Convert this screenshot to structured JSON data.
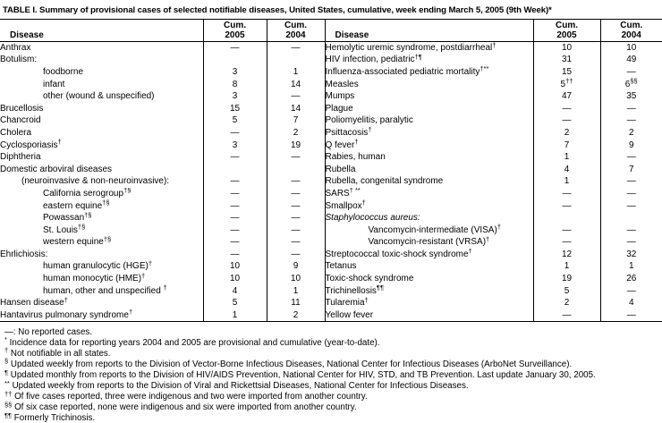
{
  "title": "TABLE I. Summary of provisional cases of selected notifiable diseases, United States, cumulative, week ending March 5, 2005 (9th Week)*",
  "header": {
    "disease": "Disease",
    "cum": "Cum.",
    "year2005": "2005",
    "year2004": "2004"
  },
  "rows_left": [
    {
      "name": "Anthrax",
      "sup": "",
      "indent": 0,
      "italic": false,
      "v2005": "—",
      "s2005": "",
      "v2004": "—",
      "s2004": ""
    },
    {
      "name": "Botulism:",
      "sup": "",
      "indent": 0,
      "italic": false,
      "v2005": "",
      "s2005": "",
      "v2004": "",
      "s2004": ""
    },
    {
      "name": "foodborne",
      "sup": "",
      "indent": 2,
      "italic": false,
      "v2005": "3",
      "s2005": "",
      "v2004": "1",
      "s2004": ""
    },
    {
      "name": "infant",
      "sup": "",
      "indent": 2,
      "italic": false,
      "v2005": "8",
      "s2005": "",
      "v2004": "14",
      "s2004": ""
    },
    {
      "name": "other (wound & unspecified)",
      "sup": "",
      "indent": 2,
      "italic": false,
      "v2005": "3",
      "s2005": "",
      "v2004": "—",
      "s2004": ""
    },
    {
      "name": "Brucellosis",
      "sup": "",
      "indent": 0,
      "italic": false,
      "v2005": "15",
      "s2005": "",
      "v2004": "14",
      "s2004": ""
    },
    {
      "name": "Chancroid",
      "sup": "",
      "indent": 0,
      "italic": false,
      "v2005": "5",
      "s2005": "",
      "v2004": "7",
      "s2004": ""
    },
    {
      "name": "Cholera",
      "sup": "",
      "indent": 0,
      "italic": false,
      "v2005": "—",
      "s2005": "",
      "v2004": "2",
      "s2004": ""
    },
    {
      "name": "Cyclosporiasis",
      "sup": "†",
      "indent": 0,
      "italic": false,
      "v2005": "3",
      "s2005": "",
      "v2004": "19",
      "s2004": ""
    },
    {
      "name": "Diphtheria",
      "sup": "",
      "indent": 0,
      "italic": false,
      "v2005": "—",
      "s2005": "",
      "v2004": "—",
      "s2004": ""
    },
    {
      "name": "Domestic arboviral diseases",
      "sup": "",
      "indent": 0,
      "italic": false,
      "v2005": "",
      "s2005": "",
      "v2004": "",
      "s2004": ""
    },
    {
      "name": "(neuroinvasive & non-neuroinvasive):",
      "sup": "",
      "indent": 1,
      "italic": false,
      "v2005": "—",
      "s2005": "",
      "v2004": "—",
      "s2004": ""
    },
    {
      "name": "California serogroup",
      "sup": "†§",
      "indent": 2,
      "italic": false,
      "v2005": "—",
      "s2005": "",
      "v2004": "—",
      "s2004": ""
    },
    {
      "name": "eastern equine",
      "sup": "†§",
      "indent": 2,
      "italic": false,
      "v2005": "—",
      "s2005": "",
      "v2004": "—",
      "s2004": ""
    },
    {
      "name": "Powassan",
      "sup": "†§",
      "indent": 2,
      "italic": false,
      "v2005": "—",
      "s2005": "",
      "v2004": "—",
      "s2004": ""
    },
    {
      "name": "St. Louis",
      "sup": "†§",
      "indent": 2,
      "italic": false,
      "v2005": "—",
      "s2005": "",
      "v2004": "—",
      "s2004": ""
    },
    {
      "name": "western equine",
      "sup": "†§",
      "indent": 2,
      "italic": false,
      "v2005": "—",
      "s2005": "",
      "v2004": "—",
      "s2004": ""
    },
    {
      "name": "Ehrlichiosis:",
      "sup": "",
      "indent": 0,
      "italic": false,
      "v2005": "—",
      "s2005": "",
      "v2004": "—",
      "s2004": ""
    },
    {
      "name": "human granulocytic (HGE)",
      "sup": "†",
      "indent": 2,
      "italic": false,
      "v2005": "10",
      "s2005": "",
      "v2004": "9",
      "s2004": ""
    },
    {
      "name": "human monocytic (HME)",
      "sup": "†",
      "indent": 2,
      "italic": false,
      "v2005": "10",
      "s2005": "",
      "v2004": "10",
      "s2004": ""
    },
    {
      "name": "human, other and unspecified ",
      "sup": "†",
      "indent": 2,
      "italic": false,
      "v2005": "4",
      "s2005": "",
      "v2004": "1",
      "s2004": ""
    },
    {
      "name": "Hansen disease",
      "sup": "†",
      "indent": 0,
      "italic": false,
      "v2005": "5",
      "s2005": "",
      "v2004": "11",
      "s2004": ""
    },
    {
      "name": "Hantavirus pulmonary syndrome",
      "sup": "†",
      "indent": 0,
      "italic": false,
      "v2005": "1",
      "s2005": "",
      "v2004": "2",
      "s2004": ""
    }
  ],
  "rows_right": [
    {
      "name": "Hemolytic uremic syndrome, postdiarrheal",
      "sup": "†",
      "indent": 0,
      "italic": false,
      "v2005": "10",
      "s2005": "",
      "v2004": "10",
      "s2004": ""
    },
    {
      "name": "HIV infection, pediatric",
      "sup": "†¶",
      "indent": 0,
      "italic": false,
      "v2005": "31",
      "s2005": "",
      "v2004": "49",
      "s2004": ""
    },
    {
      "name": "Influenza-associated pediatric mortality",
      "sup": "†**",
      "indent": 0,
      "italic": false,
      "v2005": "15",
      "s2005": "",
      "v2004": "—",
      "s2004": ""
    },
    {
      "name": "Measles",
      "sup": "",
      "indent": 0,
      "italic": false,
      "v2005": "5",
      "s2005": "††",
      "v2004": "6",
      "s2004": "§§"
    },
    {
      "name": "Mumps",
      "sup": "",
      "indent": 0,
      "italic": false,
      "v2005": "47",
      "s2005": "",
      "v2004": "35",
      "s2004": ""
    },
    {
      "name": "Plague",
      "sup": "",
      "indent": 0,
      "italic": false,
      "v2005": "—",
      "s2005": "",
      "v2004": "—",
      "s2004": ""
    },
    {
      "name": "Poliomyelitis, paralytic",
      "sup": "",
      "indent": 0,
      "italic": false,
      "v2005": "—",
      "s2005": "",
      "v2004": "—",
      "s2004": ""
    },
    {
      "name": "Psittacosis",
      "sup": "†",
      "indent": 0,
      "italic": false,
      "v2005": "2",
      "s2005": "",
      "v2004": "2",
      "s2004": ""
    },
    {
      "name": "Q fever",
      "sup": "†",
      "indent": 0,
      "italic": false,
      "v2005": "7",
      "s2005": "",
      "v2004": "9",
      "s2004": ""
    },
    {
      "name": "Rabies, human",
      "sup": "",
      "indent": 0,
      "italic": false,
      "v2005": "1",
      "s2005": "",
      "v2004": "—",
      "s2004": ""
    },
    {
      "name": "Rubella",
      "sup": "",
      "indent": 0,
      "italic": false,
      "v2005": "4",
      "s2005": "",
      "v2004": "7",
      "s2004": ""
    },
    {
      "name": "Rubella, congenital syndrome",
      "sup": "",
      "indent": 0,
      "italic": false,
      "v2005": "1",
      "s2005": "",
      "v2004": "—",
      "s2004": ""
    },
    {
      "name": "SARS",
      "sup": "† **",
      "indent": 0,
      "italic": false,
      "v2005": "—",
      "s2005": "",
      "v2004": "—",
      "s2004": ""
    },
    {
      "name": "Smallpox",
      "sup": "†",
      "indent": 0,
      "italic": false,
      "v2005": "—",
      "s2005": "",
      "v2004": "—",
      "s2004": ""
    },
    {
      "name": "Staphylococcus aureus:",
      "sup": "",
      "indent": 0,
      "italic": true,
      "v2005": "",
      "s2005": "",
      "v2004": "",
      "s2004": ""
    },
    {
      "name": "Vancomycin-intermediate (VISA)",
      "sup": "†",
      "indent": 2,
      "italic": false,
      "v2005": "—",
      "s2005": "",
      "v2004": "—",
      "s2004": ""
    },
    {
      "name": "Vancomycin-resistant (VRSA)",
      "sup": "†",
      "indent": 2,
      "italic": false,
      "v2005": "—",
      "s2005": "",
      "v2004": "—",
      "s2004": ""
    },
    {
      "name": "Streptococcal toxic-shock syndrome",
      "sup": "†",
      "indent": 0,
      "italic": false,
      "v2005": "12",
      "s2005": "",
      "v2004": "32",
      "s2004": ""
    },
    {
      "name": "Tetanus",
      "sup": "",
      "indent": 0,
      "italic": false,
      "v2005": "1",
      "s2005": "",
      "v2004": "1",
      "s2004": ""
    },
    {
      "name": "Toxic-shock syndrome",
      "sup": "",
      "indent": 0,
      "italic": false,
      "v2005": "19",
      "s2005": "",
      "v2004": "26",
      "s2004": ""
    },
    {
      "name": "Trichinellosis",
      "sup": "¶¶",
      "indent": 0,
      "italic": false,
      "v2005": "5",
      "s2005": "",
      "v2004": "—",
      "s2004": ""
    },
    {
      "name": "Tularemia",
      "sup": "†",
      "indent": 0,
      "italic": false,
      "v2005": "2",
      "s2005": "",
      "v2004": "4",
      "s2004": ""
    },
    {
      "name": "Yellow fever",
      "sup": "",
      "indent": 0,
      "italic": false,
      "v2005": "—",
      "s2005": "",
      "v2004": "—",
      "s2004": ""
    }
  ],
  "footnotes": [
    {
      "marker": "—:",
      "sup": false,
      "text": "No reported cases."
    },
    {
      "marker": "*",
      "sup": true,
      "text": "Incidence data for reporting years 2004 and 2005 are provisional and cumulative (year-to-date)."
    },
    {
      "marker": "†",
      "sup": true,
      "text": "Not notifiable in all states."
    },
    {
      "marker": "§",
      "sup": true,
      "text": "Updated weekly from reports to the Division of Vector-Borne Infectious Diseases, National Center for Infectious Diseases (ArboNet Surveillance)."
    },
    {
      "marker": "¶",
      "sup": true,
      "text": "Updated monthly from reports to the Division of HIV/AIDS Prevention, National Center for HIV, STD, and TB Prevention. Last update January 30, 2005."
    },
    {
      "marker": "**",
      "sup": true,
      "text": "Updated weekly from reports to the Division of Viral and Rickettsial Diseases, National Center for Infectious Diseases."
    },
    {
      "marker": "††",
      "sup": true,
      "text": "Of five cases reported, three were indigenous and two were imported from another country."
    },
    {
      "marker": "§§",
      "sup": true,
      "text": "Of six case reported, none were indigenous and six were imported from another country."
    },
    {
      "marker": "¶¶",
      "sup": true,
      "text": "Formerly Trichinosis."
    }
  ]
}
